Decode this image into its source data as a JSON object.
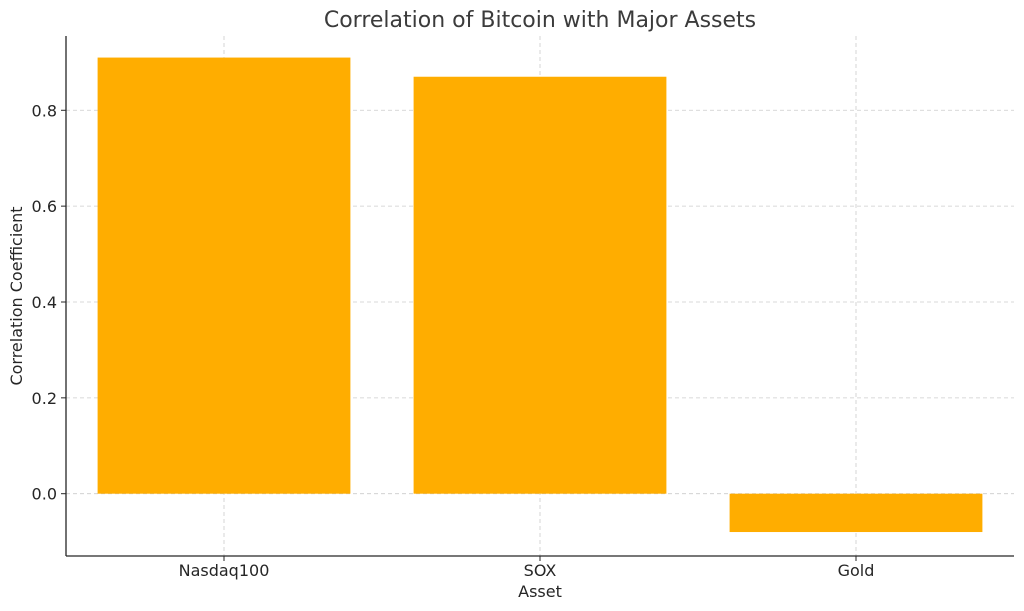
{
  "chart_data": {
    "type": "bar",
    "title": "Correlation of Bitcoin with Major Assets",
    "xlabel": "Asset",
    "ylabel": "Correlation Coefficient",
    "categories": [
      "Nasdaq100",
      "SOX",
      "Gold"
    ],
    "values": [
      0.91,
      0.87,
      -0.08
    ],
    "ylim": [
      -0.13,
      0.955
    ],
    "yticks": [
      0.0,
      0.2,
      0.4,
      0.6,
      0.8
    ],
    "ytick_labels": [
      "0.0",
      "0.2",
      "0.4",
      "0.6",
      "0.8"
    ],
    "grid": true,
    "bar_color": "#FFAD00"
  }
}
